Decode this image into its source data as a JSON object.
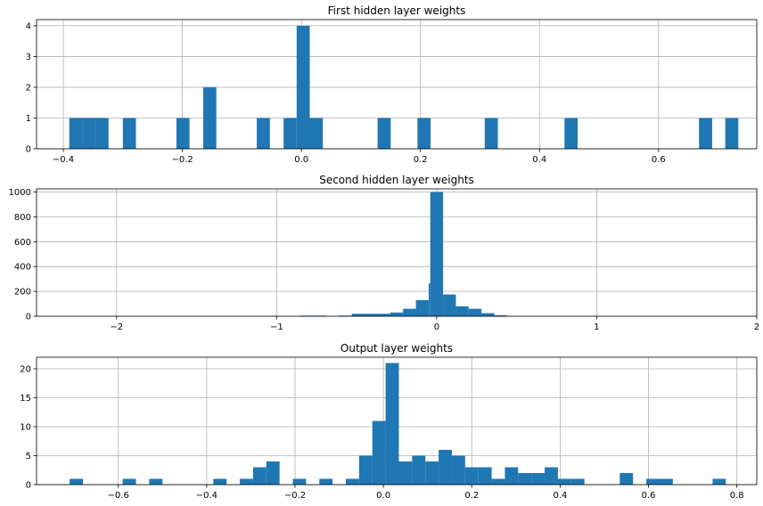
{
  "chart_data": [
    {
      "type": "histogram",
      "title": "First hidden layer weights",
      "xlim": [
        -0.445,
        0.765
      ],
      "ylim": [
        0,
        4.2
      ],
      "xticks": [
        -0.4,
        -0.2,
        0.0,
        0.2,
        0.4,
        0.6
      ],
      "xtick_labels": [
        "−0.4",
        "−0.2",
        "0.0",
        "0.2",
        "0.4",
        "0.6"
      ],
      "yticks": [
        0,
        1,
        2,
        3,
        4
      ],
      "ytick_labels": [
        "0",
        "1",
        "2",
        "3",
        "4"
      ],
      "grid": true,
      "bar_color": "#1f77b4",
      "bins": [
        {
          "x0": -0.39,
          "x1": -0.368,
          "count": 1
        },
        {
          "x0": -0.368,
          "x1": -0.346,
          "count": 1
        },
        {
          "x0": -0.346,
          "x1": -0.324,
          "count": 1
        },
        {
          "x0": -0.3,
          "x1": -0.278,
          "count": 1
        },
        {
          "x0": -0.21,
          "x1": -0.188,
          "count": 1
        },
        {
          "x0": -0.165,
          "x1": -0.143,
          "count": 2
        },
        {
          "x0": -0.075,
          "x1": -0.053,
          "count": 1
        },
        {
          "x0": -0.03,
          "x1": -0.008,
          "count": 1
        },
        {
          "x0": -0.008,
          "x1": 0.014,
          "count": 4
        },
        {
          "x0": 0.014,
          "x1": 0.036,
          "count": 1
        },
        {
          "x0": 0.128,
          "x1": 0.15,
          "count": 1
        },
        {
          "x0": 0.195,
          "x1": 0.217,
          "count": 1
        },
        {
          "x0": 0.308,
          "x1": 0.33,
          "count": 1
        },
        {
          "x0": 0.442,
          "x1": 0.464,
          "count": 1
        },
        {
          "x0": 0.668,
          "x1": 0.69,
          "count": 1
        },
        {
          "x0": 0.712,
          "x1": 0.734,
          "count": 1
        }
      ]
    },
    {
      "type": "histogram",
      "title": "Second hidden layer weights",
      "xlim": [
        -2.5,
        2.0
      ],
      "ylim": [
        0,
        1025
      ],
      "xticks": [
        -2,
        -1,
        0,
        1,
        2
      ],
      "xtick_labels": [
        "−2",
        "−1",
        "0",
        "1",
        "2"
      ],
      "yticks": [
        0,
        200,
        400,
        600,
        800,
        1000
      ],
      "ytick_labels": [
        "0",
        "200",
        "400",
        "600",
        "800",
        "1000"
      ],
      "grid": true,
      "bar_color": "#1f77b4",
      "bins": [
        {
          "x0": -0.85,
          "x1": -0.77,
          "count": 5
        },
        {
          "x0": -0.77,
          "x1": -0.69,
          "count": 5
        },
        {
          "x0": -0.61,
          "x1": -0.53,
          "count": 5
        },
        {
          "x0": -0.53,
          "x1": -0.45,
          "count": 20
        },
        {
          "x0": -0.45,
          "x1": -0.37,
          "count": 20
        },
        {
          "x0": -0.37,
          "x1": -0.29,
          "count": 20
        },
        {
          "x0": -0.29,
          "x1": -0.21,
          "count": 30
        },
        {
          "x0": -0.21,
          "x1": -0.13,
          "count": 60
        },
        {
          "x0": -0.13,
          "x1": -0.05,
          "count": 130
        },
        {
          "x0": -0.05,
          "x1": -0.04,
          "count": 265
        },
        {
          "x0": -0.04,
          "x1": 0.04,
          "count": 1000
        },
        {
          "x0": 0.04,
          "x1": 0.12,
          "count": 175
        },
        {
          "x0": 0.12,
          "x1": 0.2,
          "count": 80
        },
        {
          "x0": 0.2,
          "x1": 0.28,
          "count": 60
        },
        {
          "x0": 0.28,
          "x1": 0.36,
          "count": 25
        },
        {
          "x0": 0.36,
          "x1": 0.44,
          "count": 8
        }
      ]
    },
    {
      "type": "histogram",
      "title": "Output layer weights",
      "xlim": [
        -0.785,
        0.845
      ],
      "ylim": [
        0,
        22
      ],
      "xticks": [
        -0.6,
        -0.4,
        -0.2,
        0.0,
        0.2,
        0.4,
        0.6,
        0.8
      ],
      "xtick_labels": [
        "−0.6",
        "−0.4",
        "−0.2",
        "0.0",
        "0.2",
        "0.4",
        "0.6",
        "0.8"
      ],
      "yticks": [
        0,
        5,
        10,
        15,
        20
      ],
      "ytick_labels": [
        "0",
        "5",
        "10",
        "15",
        "20"
      ],
      "grid": true,
      "bar_color": "#1f77b4",
      "bins": [
        {
          "x0": -0.71,
          "x1": -0.68,
          "count": 1
        },
        {
          "x0": -0.59,
          "x1": -0.56,
          "count": 1
        },
        {
          "x0": -0.53,
          "x1": -0.5,
          "count": 1
        },
        {
          "x0": -0.385,
          "x1": -0.355,
          "count": 1
        },
        {
          "x0": -0.325,
          "x1": -0.295,
          "count": 1
        },
        {
          "x0": -0.295,
          "x1": -0.265,
          "count": 3
        },
        {
          "x0": -0.265,
          "x1": -0.235,
          "count": 4
        },
        {
          "x0": -0.205,
          "x1": -0.175,
          "count": 1
        },
        {
          "x0": -0.145,
          "x1": -0.115,
          "count": 1
        },
        {
          "x0": -0.085,
          "x1": -0.055,
          "count": 1
        },
        {
          "x0": -0.055,
          "x1": -0.025,
          "count": 5
        },
        {
          "x0": -0.025,
          "x1": 0.005,
          "count": 11
        },
        {
          "x0": 0.005,
          "x1": 0.035,
          "count": 21
        },
        {
          "x0": 0.035,
          "x1": 0.065,
          "count": 4
        },
        {
          "x0": 0.065,
          "x1": 0.095,
          "count": 5
        },
        {
          "x0": 0.095,
          "x1": 0.125,
          "count": 4
        },
        {
          "x0": 0.125,
          "x1": 0.155,
          "count": 6
        },
        {
          "x0": 0.155,
          "x1": 0.185,
          "count": 5
        },
        {
          "x0": 0.185,
          "x1": 0.215,
          "count": 3
        },
        {
          "x0": 0.215,
          "x1": 0.245,
          "count": 3
        },
        {
          "x0": 0.245,
          "x1": 0.275,
          "count": 1
        },
        {
          "x0": 0.275,
          "x1": 0.305,
          "count": 3
        },
        {
          "x0": 0.305,
          "x1": 0.335,
          "count": 2
        },
        {
          "x0": 0.335,
          "x1": 0.365,
          "count": 2
        },
        {
          "x0": 0.365,
          "x1": 0.395,
          "count": 3
        },
        {
          "x0": 0.395,
          "x1": 0.425,
          "count": 1
        },
        {
          "x0": 0.425,
          "x1": 0.455,
          "count": 1
        },
        {
          "x0": 0.535,
          "x1": 0.565,
          "count": 2
        },
        {
          "x0": 0.595,
          "x1": 0.625,
          "count": 1
        },
        {
          "x0": 0.625,
          "x1": 0.655,
          "count": 1
        },
        {
          "x0": 0.745,
          "x1": 0.775,
          "count": 1
        }
      ]
    }
  ]
}
